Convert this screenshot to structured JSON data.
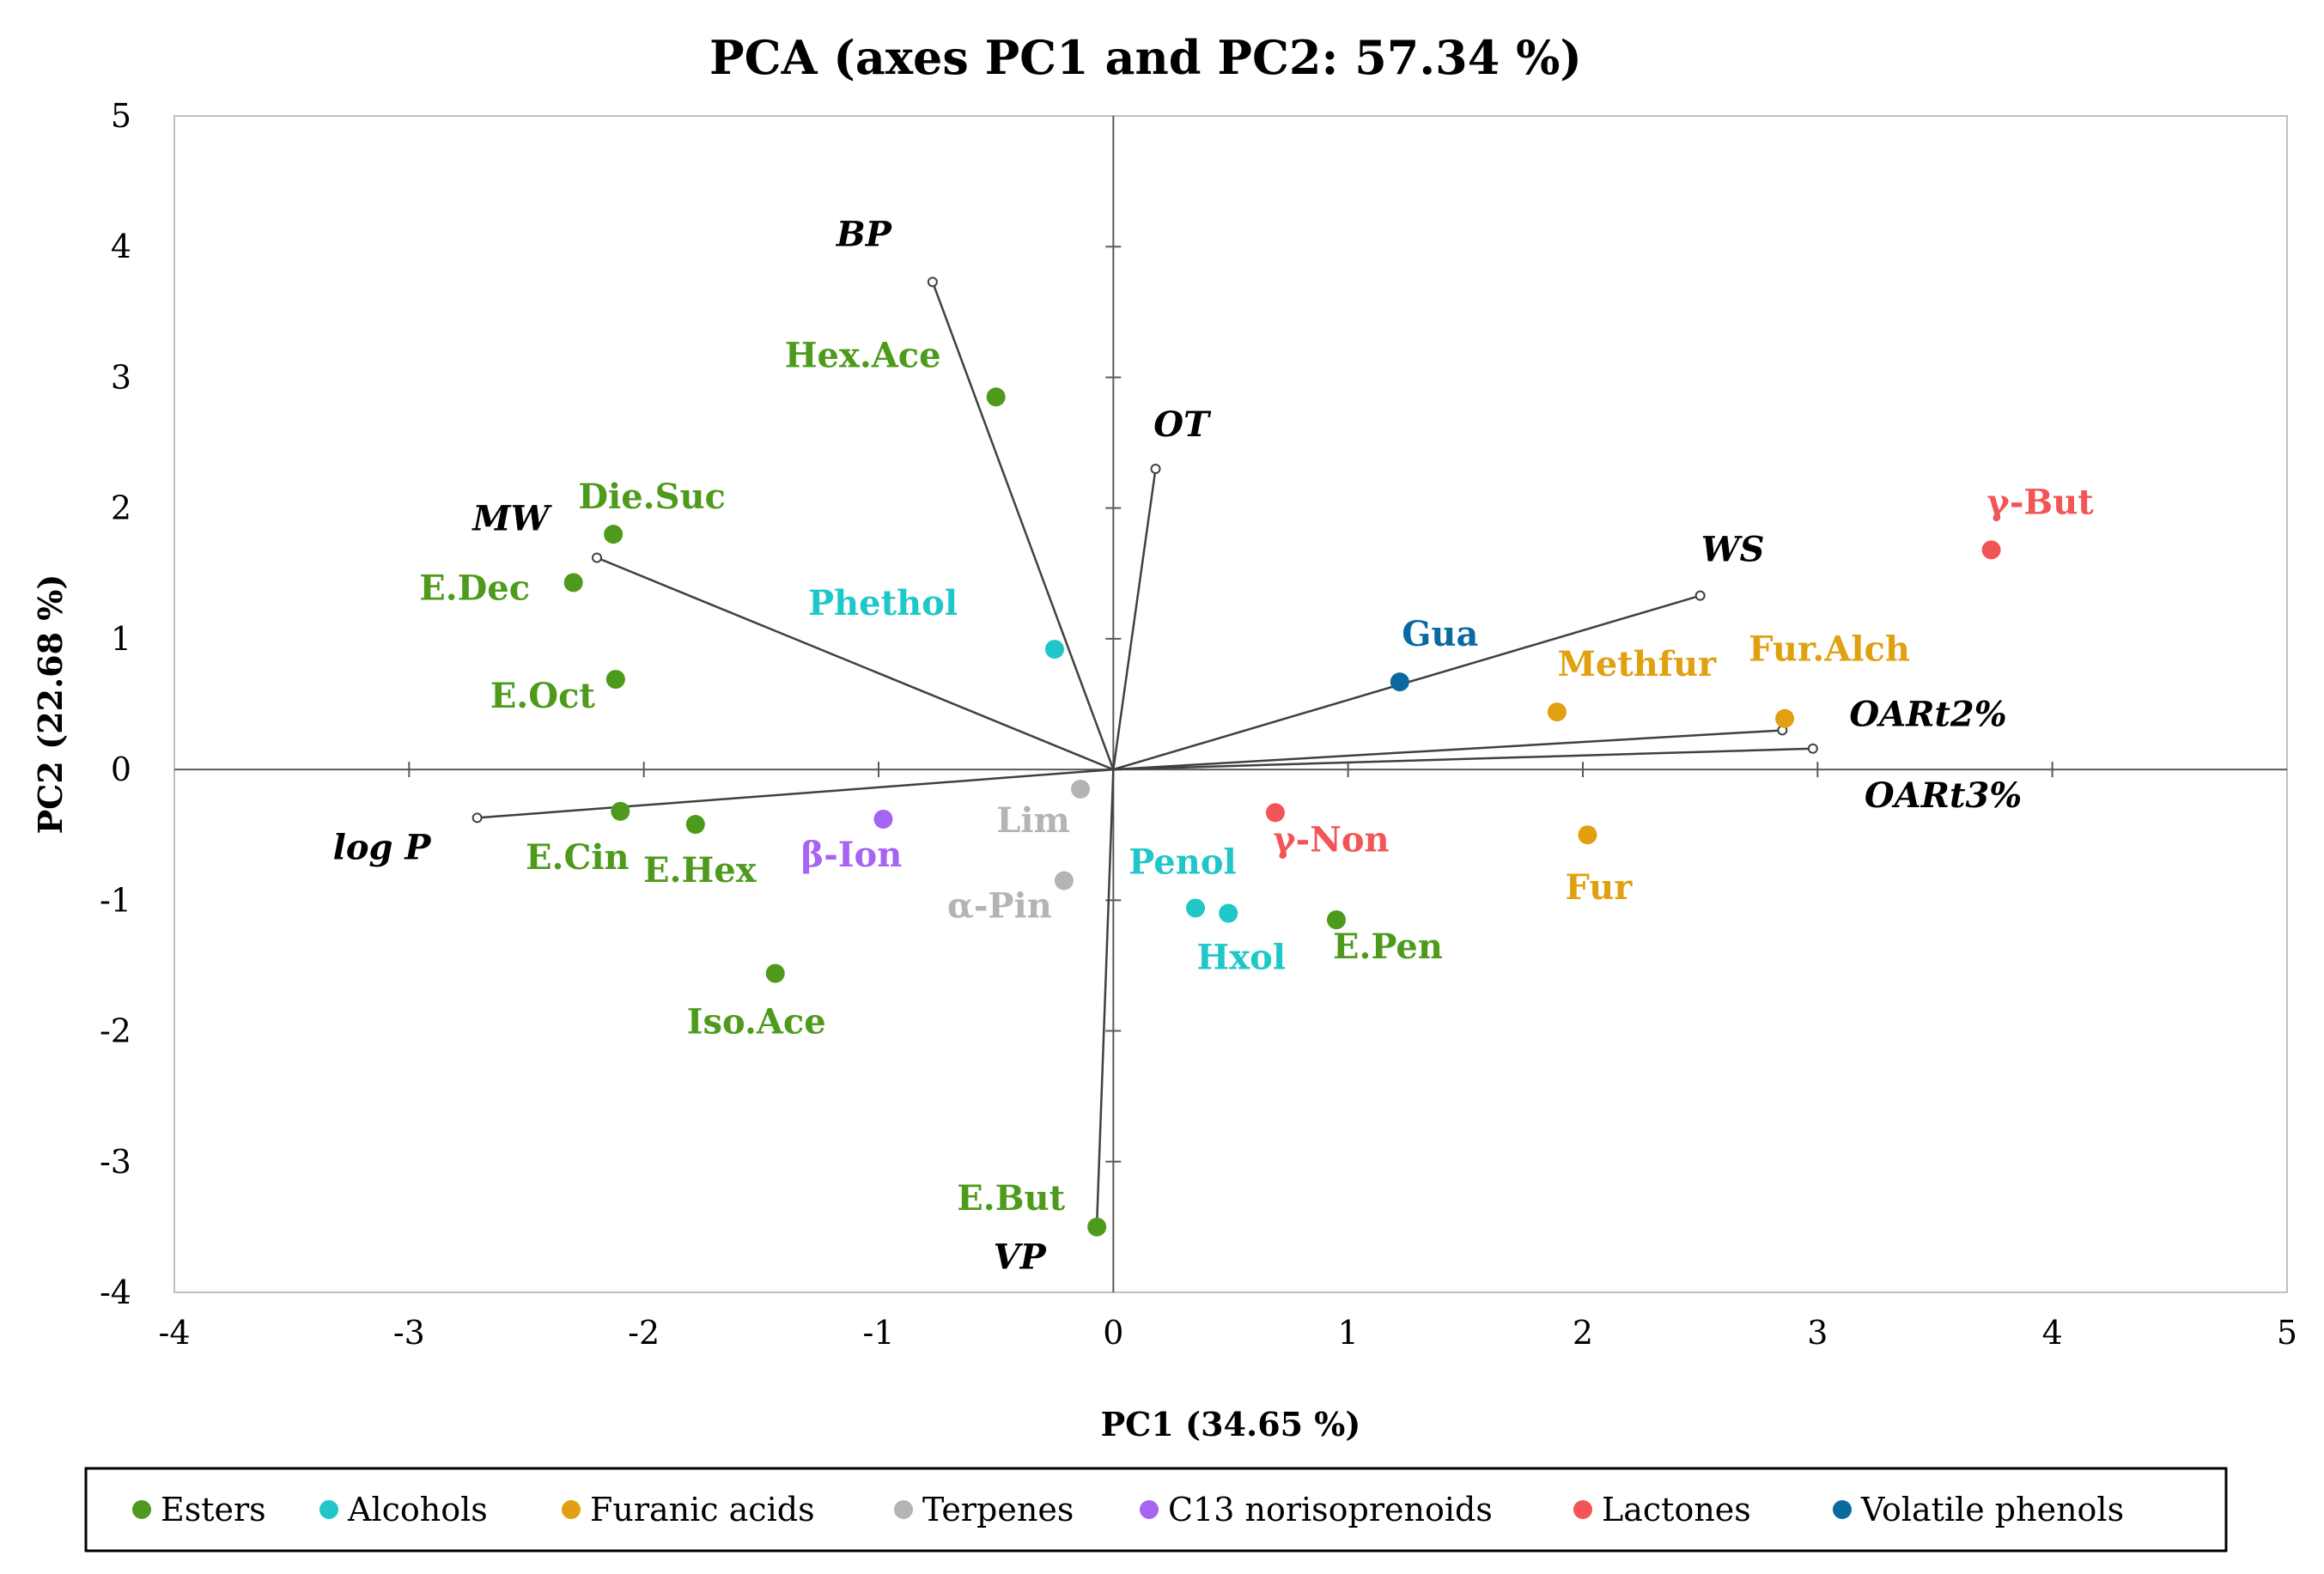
{
  "colors": {
    "Esters": "#4e9a1c",
    "Alcohols": "#1fc7c9",
    "Furanic acids": "#e0a00f",
    "Terpenes": "#b4b4b4",
    "C13 norisoprenoids": "#a763f2",
    "Lactones": "#f25555",
    "Volatile phenols": "#0a6aa0"
  },
  "chart_data": {
    "type": "scatter",
    "title": "PCA (axes PC1 and PC2: 57.34 %)",
    "xlabel": "PC1 (34.65 %)",
    "ylabel": "PC2 (22.68 %)",
    "xlim": [
      -4,
      5
    ],
    "ylim": [
      -4,
      5
    ],
    "xticks": [
      -4,
      -3,
      -2,
      -1,
      0,
      1,
      2,
      3,
      4,
      5
    ],
    "yticks": [
      -4,
      -3,
      -2,
      -1,
      0,
      1,
      2,
      3,
      4,
      5
    ],
    "grid": false,
    "legend_position": "bottom",
    "legend": [
      "Esters",
      "Alcohols",
      "Furanic acids",
      "Terpenes",
      "C13 norisoprenoids",
      "Lactones",
      "Volatile phenols"
    ],
    "points": [
      {
        "label": "Hex.Ace",
        "group": "Esters",
        "x": -0.5,
        "y": 2.85
      },
      {
        "label": "Die.Suc",
        "group": "Esters",
        "x": -2.13,
        "y": 1.8
      },
      {
        "label": "E.Dec",
        "group": "Esters",
        "x": -2.3,
        "y": 1.43
      },
      {
        "label": "E.Oct",
        "group": "Esters",
        "x": -2.12,
        "y": 0.69
      },
      {
        "label": "E.Cin",
        "group": "Esters",
        "x": -2.1,
        "y": -0.32
      },
      {
        "label": "E.Hex",
        "group": "Esters",
        "x": -1.78,
        "y": -0.42
      },
      {
        "label": "Iso.Ace",
        "group": "Esters",
        "x": -1.44,
        "y": -1.56
      },
      {
        "label": "E.Pen",
        "group": "Esters",
        "x": 0.95,
        "y": -1.15
      },
      {
        "label": "E.But",
        "group": "Esters",
        "x": -0.07,
        "y": -3.5
      },
      {
        "label": "Phethol",
        "group": "Alcohols",
        "x": -0.25,
        "y": 0.92
      },
      {
        "label": "Penol",
        "group": "Alcohols",
        "x": 0.35,
        "y": -1.06
      },
      {
        "label": "Hxol",
        "group": "Alcohols",
        "x": 0.49,
        "y": -1.1
      },
      {
        "label": "Methfur",
        "group": "Furanic acids",
        "x": 1.89,
        "y": 0.44
      },
      {
        "label": "Fur.Alch",
        "group": "Furanic acids",
        "x": 2.86,
        "y": 0.39
      },
      {
        "label": "Fur",
        "group": "Furanic acids",
        "x": 2.02,
        "y": -0.5
      },
      {
        "label": "Lim",
        "group": "Terpenes",
        "x": -0.14,
        "y": -0.15
      },
      {
        "label": "α-Pin",
        "group": "Terpenes",
        "x": -0.21,
        "y": -0.85
      },
      {
        "label": "β-Ion",
        "group": "C13 norisoprenoids",
        "x": -0.98,
        "y": -0.38
      },
      {
        "label": "γ-But",
        "group": "Lactones",
        "x": 3.74,
        "y": 1.68
      },
      {
        "label": "γ-Non",
        "group": "Lactones",
        "x": 0.69,
        "y": -0.33
      },
      {
        "label": "Gua",
        "group": "Volatile phenols",
        "x": 1.22,
        "y": 0.67
      }
    ],
    "loadings": [
      {
        "label": "BP",
        "x": -0.77,
        "y": 3.73
      },
      {
        "label": "OT",
        "x": 0.18,
        "y": 2.3
      },
      {
        "label": "MW",
        "x": -2.2,
        "y": 1.62
      },
      {
        "label": "WS",
        "x": 2.5,
        "y": 1.33
      },
      {
        "label": "OARt2%",
        "x": 2.85,
        "y": 0.3
      },
      {
        "label": "OARt3%",
        "x": 2.98,
        "y": 0.16
      },
      {
        "label": "log P",
        "x": -2.71,
        "y": -0.37
      },
      {
        "label": "VP",
        "x": -0.07,
        "y": -3.47
      }
    ]
  }
}
